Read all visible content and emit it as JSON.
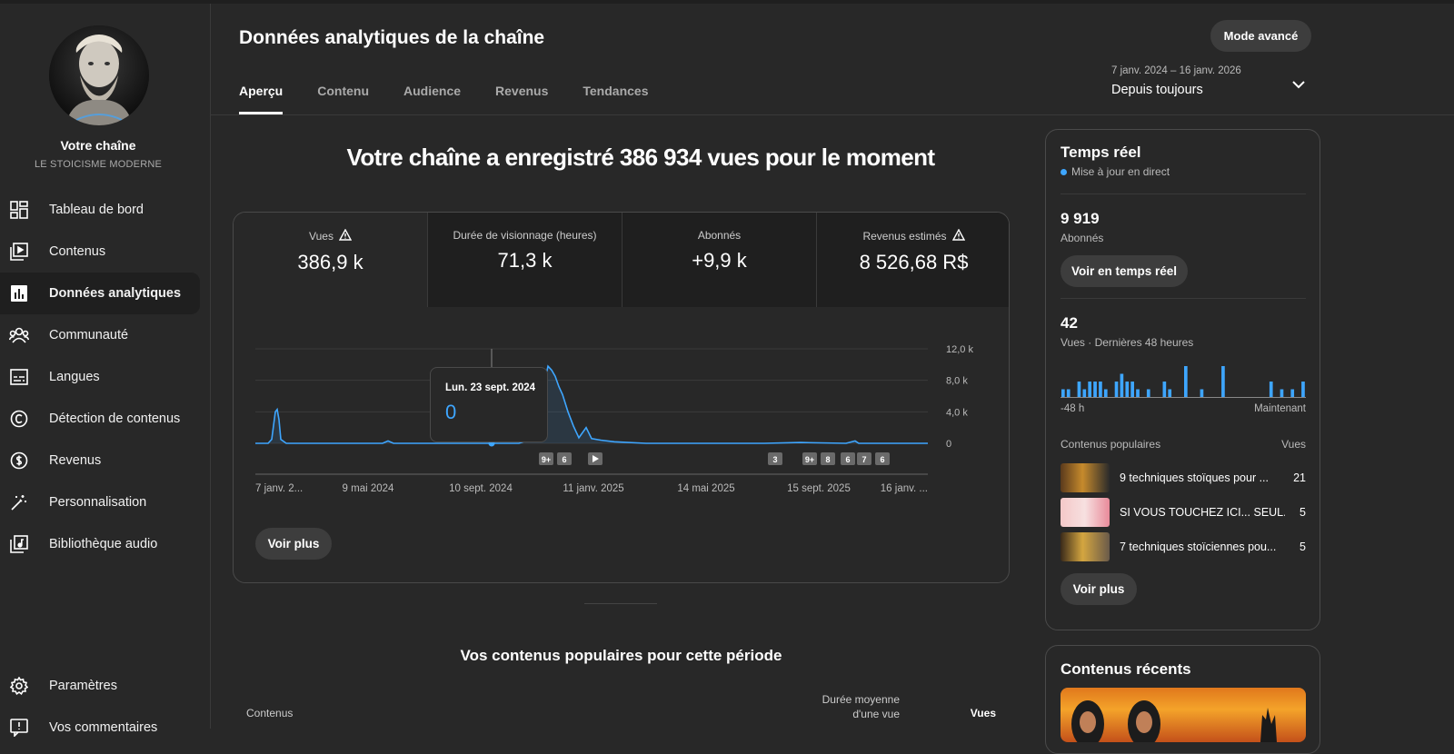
{
  "sidebar": {
    "channel_label": "Votre chaîne",
    "channel_name": "LE STOICISME MODERNE",
    "items": [
      {
        "label": "Tableau de bord",
        "icon": "dashboard-icon"
      },
      {
        "label": "Contenus",
        "icon": "content-icon"
      },
      {
        "label": "Données analytiques",
        "icon": "analytics-icon",
        "active": true
      },
      {
        "label": "Communauté",
        "icon": "community-icon"
      },
      {
        "label": "Langues",
        "icon": "subtitles-icon"
      },
      {
        "label": "Détection de contenus",
        "icon": "copyright-icon"
      },
      {
        "label": "Revenus",
        "icon": "dollar-icon"
      },
      {
        "label": "Personnalisation",
        "icon": "magic-wand-icon"
      },
      {
        "label": "Bibliothèque audio",
        "icon": "audio-library-icon"
      }
    ],
    "bottom": [
      {
        "label": "Paramètres",
        "icon": "gear-icon"
      },
      {
        "label": "Vos commentaires",
        "icon": "feedback-icon"
      }
    ]
  },
  "header": {
    "title": "Données analytiques de la chaîne",
    "mode_button": "Mode avancé",
    "tabs": [
      "Aperçu",
      "Contenu",
      "Audience",
      "Revenus",
      "Tendances"
    ],
    "date_range": "7 janv. 2024 – 16 janv. 2026",
    "date_preset": "Depuis toujours"
  },
  "headline": "Votre chaîne a enregistré 386 934 vues pour le moment",
  "metrics": [
    {
      "title": "Vues",
      "value": "386,9 k",
      "warning": true
    },
    {
      "title": "Durée de visionnage (heures)",
      "value": "71,3 k",
      "warning": false
    },
    {
      "title": "Abonnés",
      "value": "+9,9 k",
      "warning": false
    },
    {
      "title": "Revenus estimés",
      "value": "8 526,68 R$",
      "warning": true
    }
  ],
  "chart_data": {
    "type": "line",
    "x_labels": [
      "7 janv. 2...",
      "9 mai 2024",
      "10 sept. 2024",
      "11 janv. 2025",
      "14 mai 2025",
      "15 sept. 2025",
      "16 janv. ..."
    ],
    "y_ticks": [
      "12,0 k",
      "8,0 k",
      "4,0 k",
      "0"
    ],
    "ylim": [
      0,
      12000
    ],
    "series": [
      {
        "values": [
          [
            0,
            0
          ],
          [
            14,
            0
          ],
          [
            18,
            500
          ],
          [
            22,
            4000
          ],
          [
            24,
            4300
          ],
          [
            26,
            3000
          ],
          [
            28,
            500
          ],
          [
            34,
            0
          ],
          [
            140,
            0
          ],
          [
            146,
            300
          ],
          [
            152,
            0
          ],
          [
            290,
            0
          ],
          [
            300,
            400
          ],
          [
            306,
            1000
          ],
          [
            312,
            1500
          ],
          [
            316,
            3000
          ],
          [
            318,
            7500
          ],
          [
            322,
            9800
          ],
          [
            326,
            9300
          ],
          [
            330,
            8500
          ],
          [
            334,
            7200
          ],
          [
            338,
            6200
          ],
          [
            344,
            4000
          ],
          [
            350,
            2200
          ],
          [
            356,
            700
          ],
          [
            364,
            2000
          ],
          [
            370,
            600
          ],
          [
            380,
            400
          ],
          [
            395,
            200
          ],
          [
            430,
            0
          ],
          [
            560,
            0
          ],
          [
            600,
            100
          ],
          [
            650,
            0
          ],
          [
            660,
            300
          ],
          [
            664,
            0
          ],
          [
            740,
            0
          ]
        ]
      }
    ],
    "annotation_markers": [
      "9+",
      "6",
      "play",
      "3",
      "9+",
      "8",
      "6",
      "7",
      "6"
    ],
    "tooltip": {
      "date": "Lun. 23 sept. 2024",
      "value": "0"
    },
    "grid": true
  },
  "see_more": "Voir plus",
  "popular": {
    "title": "Vos contenus populaires pour cette période",
    "col_content": "Contenus",
    "col_duration_1": "Durée moyenne",
    "col_duration_2": "d'une vue",
    "col_views": "Vues"
  },
  "realtime": {
    "title": "Temps réel",
    "live": "Mise à jour en direct",
    "subscribers": "9 919",
    "subscribers_label": "Abonnés",
    "realtime_button": "Voir en temps réel",
    "views": "42",
    "views_label": "Vues · Dernières 48 heures",
    "bars": [
      1,
      1,
      0,
      2,
      1,
      2,
      2,
      2,
      1,
      0,
      2,
      3,
      2,
      2,
      1,
      0,
      1,
      0,
      0,
      2,
      1,
      0,
      0,
      4,
      0,
      0,
      1,
      0,
      0,
      0,
      4,
      0,
      0,
      0,
      0,
      0,
      0,
      0,
      0,
      2,
      0,
      1,
      0,
      1,
      0,
      2
    ],
    "range_start": "-48 h",
    "range_end": "Maintenant",
    "popular_header": "Contenus populaires",
    "popular_views_header": "Vues",
    "popular_items": [
      {
        "title": "9 techniques stoïques pour ...",
        "views": "21"
      },
      {
        "title": "SI VOUS TOUCHEZ ICI... SEUL...",
        "views": "5"
      },
      {
        "title": "7 techniques stoïciennes pou...",
        "views": "5"
      }
    ],
    "see_more": "Voir plus"
  },
  "recent": {
    "title": "Contenus récents"
  },
  "colors": {
    "accent": "#3ea6ff",
    "background": "#282828",
    "card_dark": "#1f1f1f"
  }
}
